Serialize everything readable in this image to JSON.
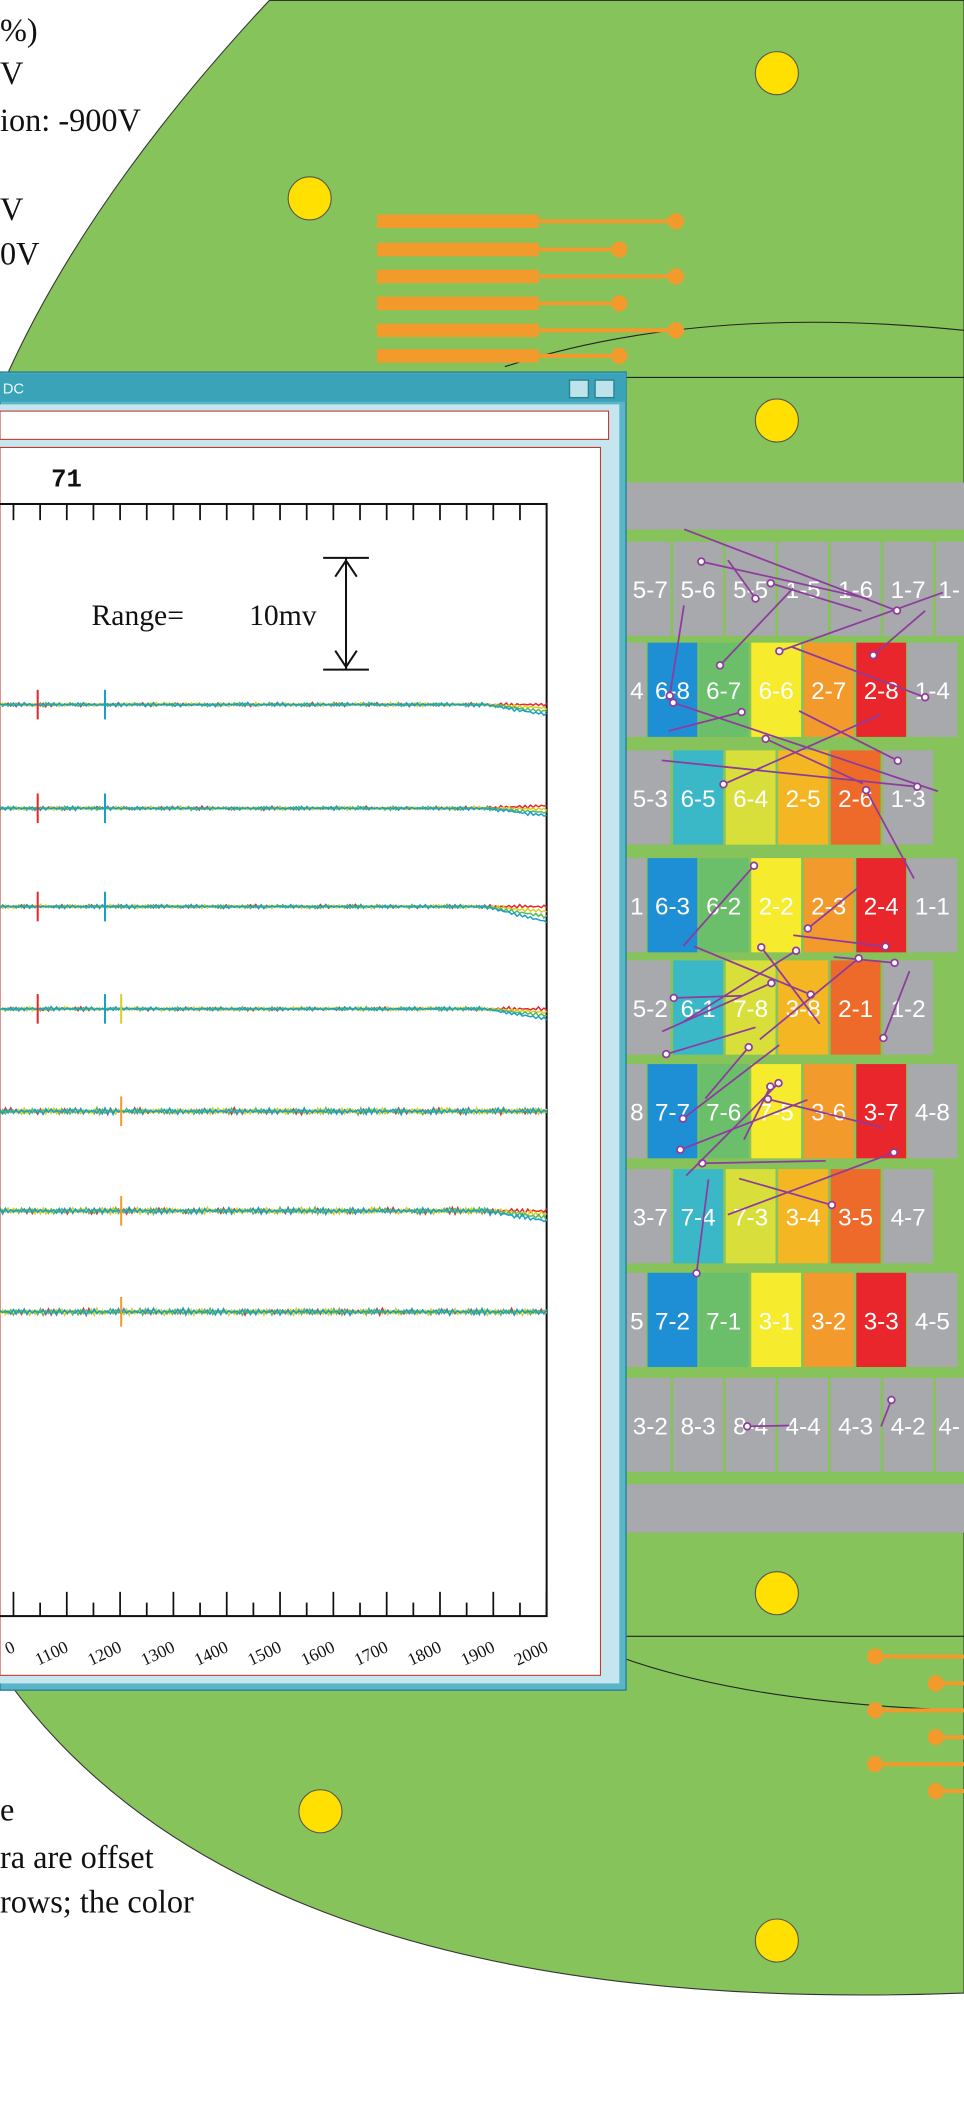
{
  "header_text": [
    "%)",
    "V",
    "ion: -900V",
    "V",
    "0V"
  ],
  "footer_text": [
    "e",
    "ra are offset",
    "rows; the color"
  ],
  "window": {
    "title": "DC"
  },
  "plot": {
    "channel": "71",
    "range_label": "Range=",
    "range_value": "10mv",
    "x_tick_labels": [
      "0",
      "1100",
      "1200",
      "1300",
      "1400",
      "1500",
      "1600",
      "1700",
      "1800",
      "1900",
      "2000"
    ]
  },
  "pads": {
    "rows": [
      [
        "5-7",
        "5-6",
        "5-5",
        "1-5",
        "1-6",
        "1-7",
        "1-"
      ],
      [
        "4",
        "6-8",
        "6-7",
        "6-6",
        "2-7",
        "2-8",
        "1-4"
      ],
      [
        "5-3",
        "6-5",
        "6-4",
        "2-5",
        "2-6",
        "1-3"
      ],
      [
        "1",
        "6-3",
        "6-2",
        "2-2",
        "2-3",
        "2-4",
        "1-1"
      ],
      [
        "5-2",
        "6-1",
        "7-8",
        "3-8",
        "2-1",
        "1-2"
      ],
      [
        "8",
        "7-7",
        "7-6",
        "7-5",
        "3-6",
        "3-7",
        "4-8"
      ],
      [
        "3-7",
        "7-4",
        "7-3",
        "3-4",
        "3-5",
        "4-7"
      ],
      [
        "5",
        "7-2",
        "7-1",
        "3-1",
        "3-2",
        "3-3",
        "4-5"
      ],
      [
        "3-2",
        "8-3",
        "8-4",
        "4-4",
        "4-3",
        "4-2",
        "4-"
      ]
    ]
  }
}
